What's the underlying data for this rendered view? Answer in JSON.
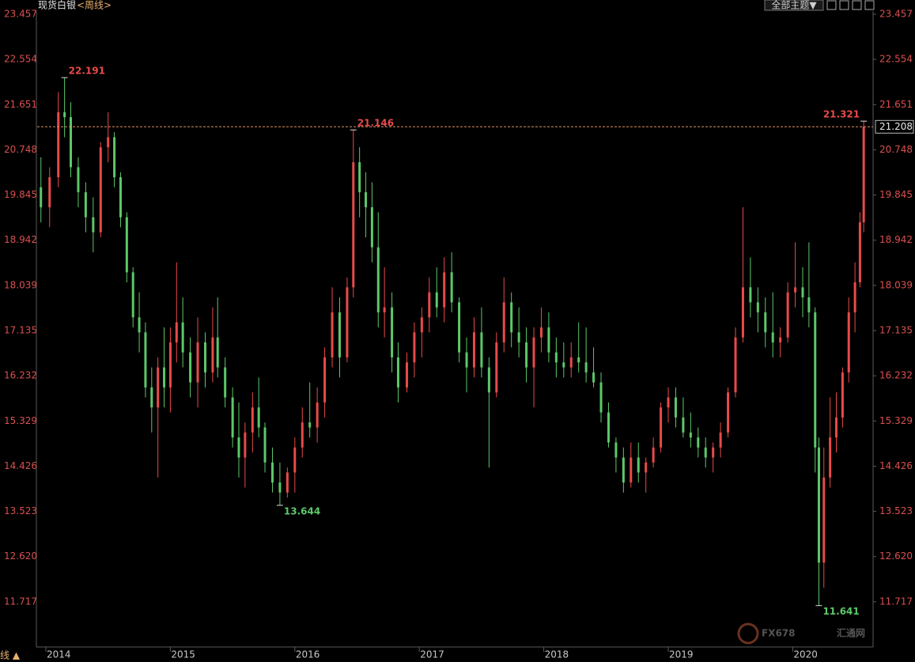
{
  "chart_data": {
    "type": "candlestick",
    "title": "现货白银",
    "period": "<周线>",
    "theme_button": "全部主题▼",
    "bottom_tab": "线 ▲",
    "watermark": "FX678",
    "watermark_cn": "汇通网",
    "up_color": "#e84a4a",
    "down_color": "#5cc86a",
    "axis_label_color": "#d9504f",
    "grid": false,
    "xlim": [
      2013.93,
      2020.62
    ],
    "xticks": [
      2014,
      2015,
      2016,
      2017,
      2018,
      2019,
      2020
    ],
    "ylim": [
      10.814,
      23.457
    ],
    "yticks": [
      23.457,
      22.554,
      21.651,
      20.748,
      19.845,
      18.942,
      18.039,
      17.135,
      16.232,
      15.329,
      14.426,
      13.523,
      {
        "value": 12.62,
        "label": "12.620"
      },
      11.717
    ],
    "x": [
      2013.96,
      2014.03,
      2014.1,
      2014.15,
      2014.2,
      2014.26,
      2014.32,
      2014.38,
      2014.44,
      2014.5,
      2014.55,
      2014.6,
      2014.65,
      2014.7,
      2014.75,
      2014.8,
      2014.85,
      2014.9,
      2014.95,
      2015.0,
      2015.05,
      2015.1,
      2015.16,
      2015.22,
      2015.28,
      2015.34,
      2015.38,
      2015.44,
      2015.5,
      2015.55,
      2015.6,
      2015.66,
      2015.71,
      2015.76,
      2015.82,
      2015.88,
      2015.94,
      2016.0,
      2016.06,
      2016.12,
      2016.18,
      2016.24,
      2016.3,
      2016.36,
      2016.42,
      2016.47,
      2016.52,
      2016.57,
      2016.62,
      2016.67,
      2016.72,
      2016.78,
      2016.83,
      2016.9,
      2016.96,
      2017.02,
      2017.08,
      2017.14,
      2017.2,
      2017.26,
      2017.32,
      2017.38,
      2017.44,
      2017.5,
      2017.56,
      2017.62,
      2017.68,
      2017.74,
      2017.8,
      2017.86,
      2017.92,
      2017.98,
      2018.04,
      2018.1,
      2018.16,
      2018.22,
      2018.28,
      2018.34,
      2018.4,
      2018.46,
      2018.52,
      2018.58,
      2018.64,
      2018.7,
      2018.76,
      2018.82,
      2018.88,
      2018.94,
      2019.0,
      2019.06,
      2019.12,
      2019.18,
      2019.24,
      2019.3,
      2019.36,
      2019.42,
      2019.48,
      2019.54,
      2019.6,
      2019.66,
      2019.72,
      2019.78,
      2019.84,
      2019.9,
      2019.96,
      2020.02,
      2020.08,
      2020.13,
      2020.18,
      2020.21,
      2020.25,
      2020.3,
      2020.35,
      2020.4,
      2020.45,
      2020.5,
      2020.54,
      2020.57
    ],
    "open": [
      20.0,
      19.6,
      20.2,
      21.5,
      21.4,
      20.4,
      19.9,
      19.4,
      19.1,
      20.8,
      21.0,
      20.2,
      19.4,
      18.3,
      17.4,
      17.1,
      16.0,
      15.6,
      16.4,
      16.0,
      16.9,
      17.3,
      16.7,
      16.1,
      16.9,
      16.3,
      17.0,
      16.4,
      15.8,
      15.0,
      14.6,
      15.1,
      15.6,
      15.2,
      14.5,
      14.1,
      13.9,
      14.3,
      14.8,
      15.3,
      15.2,
      15.7,
      16.6,
      17.5,
      16.6,
      18.0,
      20.5,
      19.9,
      19.6,
      18.8,
      17.5,
      17.6,
      16.6,
      16.0,
      16.5,
      17.1,
      17.4,
      17.9,
      17.6,
      18.3,
      17.7,
      16.7,
      16.4,
      17.1,
      16.4,
      15.9,
      16.9,
      17.7,
      17.1,
      16.9,
      16.4,
      17.0,
      17.2,
      16.7,
      16.5,
      16.4,
      16.6,
      16.5,
      16.3,
      16.1,
      15.5,
      14.9,
      14.6,
      14.1,
      14.6,
      14.3,
      14.5,
      14.8,
      15.6,
      15.8,
      15.4,
      15.1,
      15.0,
      14.8,
      14.6,
      14.8,
      15.1,
      15.9,
      17.0,
      18.0,
      17.7,
      17.5,
      17.1,
      16.9,
      17.0,
      17.9,
      18.0,
      17.8,
      17.5,
      14.8,
      12.5,
      14.2,
      15.0,
      15.4,
      16.3,
      17.5,
      18.1,
      19.3
    ],
    "high": [
      20.6,
      20.4,
      21.9,
      22.191,
      21.7,
      20.6,
      20.1,
      19.8,
      20.9,
      21.5,
      21.1,
      20.3,
      19.5,
      18.4,
      17.9,
      17.3,
      16.4,
      16.6,
      17.2,
      17.2,
      18.5,
      17.8,
      17.0,
      17.4,
      17.1,
      17.6,
      17.8,
      16.6,
      16.0,
      15.7,
      15.3,
      15.9,
      16.2,
      15.3,
      14.8,
      14.5,
      14.4,
      15.0,
      15.6,
      16.1,
      16.0,
      16.8,
      18.0,
      17.8,
      18.2,
      21.146,
      20.8,
      20.3,
      20.1,
      19.5,
      18.4,
      17.9,
      16.9,
      16.7,
      17.3,
      17.6,
      18.2,
      18.4,
      18.6,
      18.7,
      17.8,
      17.0,
      17.4,
      17.6,
      16.6,
      17.1,
      18.2,
      17.9,
      17.6,
      17.2,
      17.2,
      17.6,
      17.5,
      17.0,
      16.9,
      16.9,
      17.3,
      17.2,
      16.8,
      16.3,
      15.7,
      15.0,
      14.8,
      14.9,
      14.9,
      14.6,
      15.0,
      15.7,
      16.0,
      16.0,
      15.8,
      15.5,
      15.2,
      15.0,
      14.9,
      15.3,
      16.0,
      17.2,
      19.6,
      18.6,
      18.0,
      17.8,
      17.9,
      17.2,
      18.1,
      18.9,
      18.4,
      18.9,
      17.6,
      15.0,
      14.8,
      15.8,
      15.9,
      16.4,
      17.8,
      18.5,
      19.5,
      21.321
    ],
    "low": [
      19.3,
      19.2,
      20.0,
      21.0,
      20.2,
      19.6,
      19.1,
      18.7,
      19.0,
      20.5,
      20.0,
      19.2,
      18.1,
      17.2,
      16.7,
      15.8,
      15.1,
      14.2,
      15.6,
      15.5,
      16.5,
      16.4,
      15.8,
      15.6,
      16.0,
      16.1,
      16.2,
      15.6,
      14.8,
      14.2,
      14.0,
      14.7,
      15.0,
      14.3,
      13.9,
      13.644,
      13.8,
      13.9,
      14.6,
      15.0,
      14.9,
      15.4,
      16.4,
      16.2,
      16.5,
      17.8,
      19.4,
      19.0,
      18.5,
      17.2,
      17.0,
      16.3,
      15.7,
      15.9,
      16.2,
      16.6,
      17.1,
      17.4,
      17.3,
      17.5,
      16.5,
      15.9,
      16.2,
      16.2,
      14.4,
      15.8,
      16.7,
      16.8,
      16.6,
      16.1,
      15.6,
      16.7,
      16.5,
      16.2,
      16.2,
      16.2,
      16.3,
      16.1,
      16.0,
      15.3,
      14.8,
      14.3,
      13.9,
      14.0,
      14.1,
      13.9,
      14.4,
      14.7,
      15.3,
      15.2,
      15.0,
      14.8,
      14.6,
      14.4,
      14.3,
      14.6,
      15.0,
      15.8,
      16.9,
      17.4,
      17.1,
      16.8,
      16.6,
      16.6,
      16.9,
      17.6,
      17.4,
      17.2,
      14.3,
      11.641,
      12.0,
      14.0,
      14.7,
      15.2,
      16.1,
      17.1,
      18.0,
      19.1
    ],
    "close": [
      19.6,
      20.2,
      21.5,
      21.4,
      20.4,
      19.9,
      19.4,
      19.1,
      20.8,
      21.0,
      20.2,
      19.4,
      18.3,
      17.4,
      17.1,
      16.0,
      15.6,
      16.4,
      16.0,
      16.9,
      17.3,
      16.7,
      16.1,
      16.9,
      16.3,
      17.0,
      16.4,
      15.8,
      15.0,
      14.6,
      15.1,
      15.6,
      15.2,
      14.5,
      14.1,
      13.9,
      14.3,
      14.8,
      15.3,
      15.2,
      15.7,
      16.6,
      17.5,
      16.6,
      18.0,
      20.5,
      19.9,
      19.6,
      18.8,
      17.5,
      17.6,
      16.6,
      16.0,
      16.5,
      17.1,
      17.4,
      17.9,
      17.6,
      18.3,
      17.7,
      16.7,
      16.4,
      17.1,
      16.4,
      15.9,
      16.9,
      17.7,
      17.1,
      16.9,
      16.4,
      17.0,
      17.2,
      16.7,
      16.5,
      16.4,
      16.6,
      16.5,
      16.3,
      16.1,
      15.5,
      14.9,
      14.6,
      14.1,
      14.6,
      14.3,
      14.5,
      14.8,
      15.6,
      15.8,
      15.4,
      15.1,
      15.0,
      14.8,
      14.6,
      14.8,
      15.1,
      15.9,
      17.0,
      18.0,
      17.7,
      17.5,
      17.1,
      16.9,
      17.0,
      17.9,
      18.0,
      17.8,
      17.5,
      14.8,
      12.5,
      14.2,
      15.0,
      15.4,
      16.3,
      17.5,
      18.1,
      19.3,
      21.208
    ]
  }
}
